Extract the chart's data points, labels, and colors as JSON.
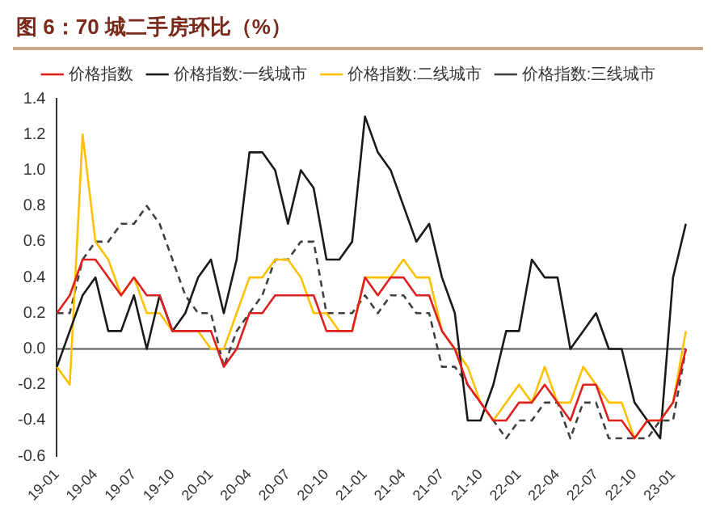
{
  "chart_data": {
    "type": "line",
    "title": "图 6：70 城二手房环比（%）",
    "categories": [
      "19-01",
      null,
      null,
      "19-04",
      null,
      null,
      "19-07",
      null,
      null,
      "19-10",
      null,
      null,
      "20-01",
      null,
      null,
      "20-04",
      null,
      null,
      "20-07",
      null,
      null,
      "20-10",
      null,
      null,
      "21-01",
      null,
      null,
      "21-04",
      null,
      null,
      "21-07",
      null,
      null,
      "21-10",
      null,
      null,
      "22-01",
      null,
      null,
      "22-04",
      null,
      null,
      "22-07",
      null,
      null,
      "22-10",
      null,
      null,
      "23-01",
      null
    ],
    "series": [
      {
        "name": "价格指数",
        "color": "#e02020",
        "line_style": "solid",
        "values": [
          0.2,
          0.3,
          0.5,
          0.5,
          0.4,
          0.3,
          0.4,
          0.3,
          0.3,
          0.1,
          0.1,
          0.1,
          0.1,
          -0.1,
          0.0,
          0.2,
          0.2,
          0.3,
          0.3,
          0.3,
          0.3,
          0.1,
          0.1,
          0.1,
          0.4,
          0.3,
          0.4,
          0.4,
          0.3,
          0.3,
          0.1,
          0.0,
          -0.2,
          -0.3,
          -0.4,
          -0.4,
          -0.3,
          -0.3,
          -0.2,
          -0.3,
          -0.4,
          -0.2,
          -0.2,
          -0.4,
          -0.4,
          -0.5,
          -0.4,
          -0.4,
          -0.3,
          0.0
        ]
      },
      {
        "name": "价格指数:一线城市",
        "color": "#1a1a1a",
        "line_style": "solid",
        "values": [
          -0.1,
          0.1,
          0.3,
          0.4,
          0.1,
          0.1,
          0.3,
          0.0,
          0.3,
          0.1,
          0.2,
          0.4,
          0.5,
          0.2,
          0.5,
          1.1,
          1.1,
          1.0,
          0.7,
          1.0,
          0.9,
          0.5,
          0.5,
          0.6,
          1.3,
          1.1,
          1.0,
          0.8,
          0.6,
          0.7,
          0.4,
          0.2,
          -0.4,
          -0.4,
          -0.2,
          0.1,
          0.1,
          0.5,
          0.4,
          0.4,
          0.0,
          0.1,
          0.2,
          0.0,
          0.0,
          -0.3,
          -0.4,
          -0.5,
          0.4,
          0.7
        ]
      },
      {
        "name": "价格指数:二线城市",
        "color": "#ffc000",
        "line_style": "solid",
        "values": [
          -0.1,
          -0.2,
          1.2,
          0.6,
          0.5,
          0.3,
          0.4,
          0.2,
          0.2,
          0.1,
          0.1,
          0.1,
          0.0,
          0.0,
          0.2,
          0.4,
          0.4,
          0.5,
          0.5,
          0.4,
          0.2,
          0.2,
          0.1,
          0.1,
          0.4,
          0.4,
          0.4,
          0.5,
          0.4,
          0.4,
          0.1,
          0.0,
          -0.1,
          -0.3,
          -0.4,
          -0.3,
          -0.2,
          -0.3,
          -0.1,
          -0.3,
          -0.3,
          -0.1,
          -0.2,
          -0.3,
          -0.3,
          -0.5,
          -0.4,
          -0.4,
          -0.3,
          0.1
        ]
      },
      {
        "name": "价格指数:三线城市",
        "color": "#404040",
        "line_style": "dashed",
        "values": [
          0.2,
          0.2,
          0.5,
          0.6,
          0.6,
          0.7,
          0.7,
          0.8,
          0.7,
          0.5,
          0.3,
          0.2,
          0.2,
          -0.1,
          0.1,
          0.2,
          0.3,
          0.5,
          0.5,
          0.6,
          0.6,
          0.2,
          0.2,
          0.2,
          0.3,
          0.2,
          0.3,
          0.3,
          0.2,
          0.2,
          -0.1,
          -0.1,
          -0.2,
          -0.3,
          -0.4,
          -0.5,
          -0.4,
          -0.4,
          -0.3,
          -0.3,
          -0.5,
          -0.3,
          -0.3,
          -0.5,
          -0.5,
          -0.5,
          -0.5,
          -0.4,
          -0.4,
          0.0
        ]
      }
    ],
    "ylim": [
      -0.6,
      1.4
    ],
    "yticks": [
      {
        "value": -0.6,
        "label": "-0.6"
      },
      {
        "value": -0.4,
        "label": "-0.4"
      },
      {
        "value": -0.2,
        "label": "-0.2"
      },
      {
        "value": 0,
        "label": "0.0"
      },
      {
        "value": 0.2,
        "label": "0.2"
      },
      {
        "value": 0.4,
        "label": "0.4"
      },
      {
        "value": 0.6,
        "label": "0.6"
      },
      {
        "value": 0.8,
        "label": "0.8"
      },
      {
        "value": 1,
        "label": "1.0"
      },
      {
        "value": 1.2,
        "label": "1.2"
      },
      {
        "value": 1.4,
        "label": "1.4"
      }
    ],
    "ref_lines": [
      {
        "axis": "y",
        "value": 0,
        "color": "#555555"
      }
    ],
    "grid": false,
    "legend": "top",
    "marker": "none"
  }
}
